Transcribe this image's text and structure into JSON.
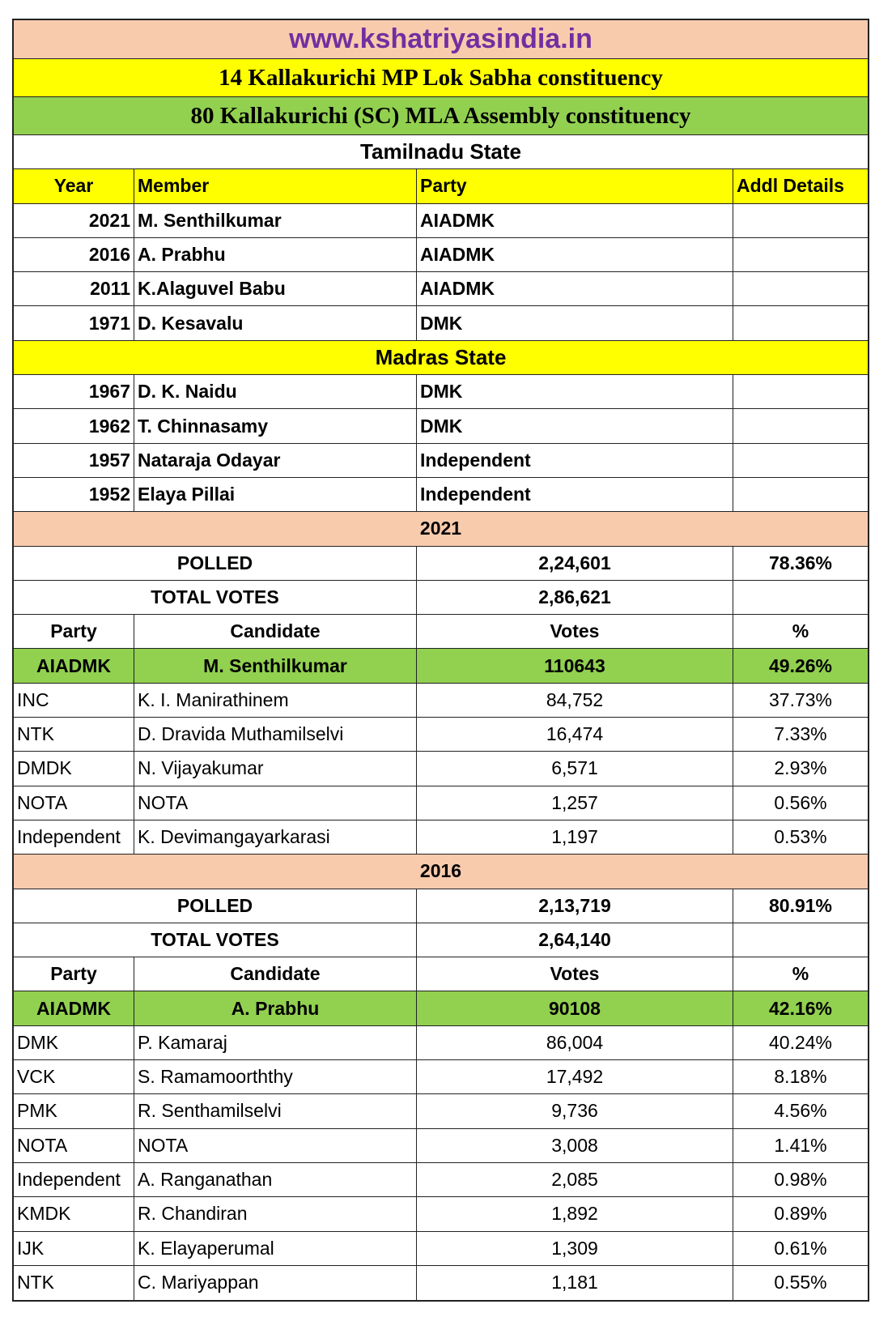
{
  "site": "www.kshatriyasindia.in",
  "mp_title": "14 Kallakurichi MP Lok Sabha constituency",
  "mla_title": "80 Kallakurichi (SC) MLA Assembly constituency",
  "colors": {
    "peach": "#f8cbad",
    "yellow": "#ffff00",
    "green": "#92d050",
    "site_text": "#7030a0"
  },
  "members_header": [
    "Year",
    "Member",
    "Party",
    "Addl Details"
  ],
  "states": [
    {
      "name": "Tamilnadu State",
      "members": [
        {
          "year": "2021",
          "member": "M. Senthilkumar",
          "party": "AIADMK",
          "details": ""
        },
        {
          "year": "2016",
          "member": "A. Prabhu",
          "party": "AIADMK",
          "details": ""
        },
        {
          "year": "2011",
          "member": "K.Alaguvel Babu",
          "party": "AIADMK",
          "details": ""
        },
        {
          "year": "1971",
          "member": "D. Kesavalu",
          "party": "DMK",
          "details": ""
        }
      ]
    },
    {
      "name": "Madras State",
      "members": [
        {
          "year": "1967",
          "member": "D. K. Naidu",
          "party": "DMK",
          "details": ""
        },
        {
          "year": "1962",
          "member": "T. Chinnasamy",
          "party": "DMK",
          "details": ""
        },
        {
          "year": "1957",
          "member": "Nataraja Odayar",
          "party": "Independent",
          "details": ""
        },
        {
          "year": "1952",
          "member": "Elaya Pillai",
          "party": "Independent",
          "details": ""
        }
      ]
    }
  ],
  "results_header": [
    "Party",
    "Candidate",
    "Votes",
    "%"
  ],
  "polled_label": "POLLED",
  "total_label": "TOTAL VOTES",
  "elections": [
    {
      "year": "2021",
      "polled": "2,24,601",
      "polled_pct": "78.36%",
      "total": "2,86,621",
      "candidates": [
        {
          "party": "AIADMK",
          "name": "M. Senthilkumar",
          "votes": "110643",
          "pct": "49.26%"
        },
        {
          "party": "INC",
          "name": "K. I. Manirathinem",
          "votes": "84,752",
          "pct": "37.73%"
        },
        {
          "party": "NTK",
          "name": "D. Dravida Muthamilselvi",
          "votes": "16,474",
          "pct": "7.33%"
        },
        {
          "party": "DMDK",
          "name": "N. Vijayakumar",
          "votes": "6,571",
          "pct": "2.93%"
        },
        {
          "party": "NOTA",
          "name": "NOTA",
          "votes": "1,257",
          "pct": "0.56%"
        },
        {
          "party": "Independent",
          "name": "K. Devimangayarkarasi",
          "votes": "1,197",
          "pct": "0.53%"
        }
      ]
    },
    {
      "year": "2016",
      "polled": "2,13,719",
      "polled_pct": "80.91%",
      "total": "2,64,140",
      "candidates": [
        {
          "party": "AIADMK",
          "name": "A. Prabhu",
          "votes": "90108",
          "pct": "42.16%"
        },
        {
          "party": "DMK",
          "name": "P. Kamaraj",
          "votes": "86,004",
          "pct": "40.24%"
        },
        {
          "party": "VCK",
          "name": "S. Ramamoorththy",
          "votes": "17,492",
          "pct": "8.18%"
        },
        {
          "party": "PMK",
          "name": "R. Senthamilselvi",
          "votes": "9,736",
          "pct": "4.56%"
        },
        {
          "party": "NOTA",
          "name": "NOTA",
          "votes": "3,008",
          "pct": "1.41%"
        },
        {
          "party": "Independent",
          "name": "A. Ranganathan",
          "votes": "2,085",
          "pct": "0.98%"
        },
        {
          "party": "KMDK",
          "name": "R. Chandiran",
          "votes": "1,892",
          "pct": "0.89%"
        },
        {
          "party": "IJK",
          "name": "K. Elayaperumal",
          "votes": "1,309",
          "pct": "0.61%"
        },
        {
          "party": "NTK",
          "name": "C. Mariyappan",
          "votes": "1,181",
          "pct": "0.55%"
        }
      ]
    }
  ]
}
